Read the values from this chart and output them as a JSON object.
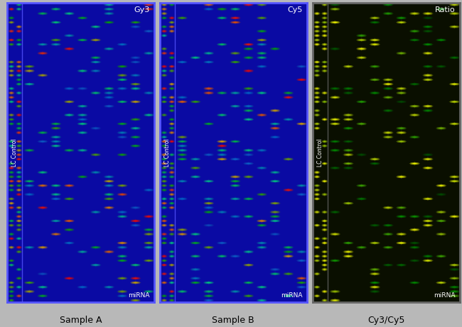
{
  "fig_width": 6.5,
  "fig_height": 4.61,
  "fig_bg": "#b8b8b8",
  "panel_titles": [
    "Sample A",
    "Sample B",
    "Cy3/Cy5"
  ],
  "panel_labels_top_right": [
    "Gy3",
    "Cy5",
    "Ratio"
  ],
  "panel_bg_blue": "#0a0acc",
  "panel_bg_dark": "#080800",
  "panel_border_blue": "#5555ff",
  "panel_border_dark": "#666666",
  "lc_control_label": "LC Control",
  "mirna_label": "miRNA",
  "n_rows": 68,
  "n_cols_lc": 2,
  "n_cols_main": 10,
  "seed": 123
}
